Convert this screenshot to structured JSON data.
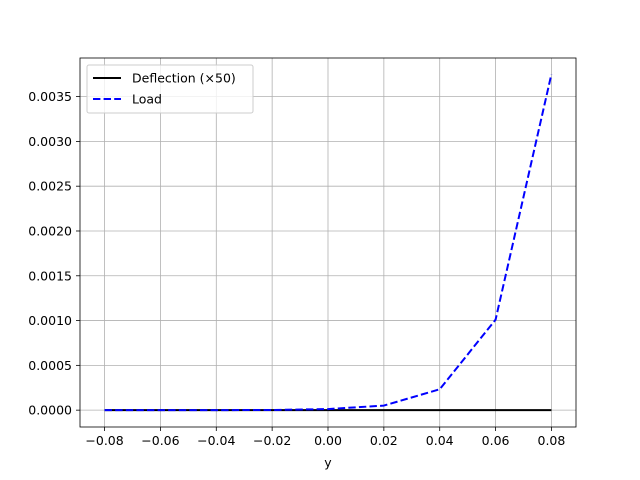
{
  "chart_data": {
    "type": "line",
    "title": "",
    "xlabel": "y",
    "ylabel": "",
    "xlim": [
      -0.0888,
      0.0888
    ],
    "ylim": [
      -0.000188,
      0.003931
    ],
    "xticks": [
      -0.08,
      -0.06,
      -0.04,
      -0.02,
      0.0,
      0.02,
      0.04,
      0.06,
      0.08
    ],
    "xtick_labels": [
      "−0.08",
      "−0.06",
      "−0.04",
      "−0.02",
      "0.00",
      "0.02",
      "0.04",
      "0.06",
      "0.08"
    ],
    "yticks": [
      0.0,
      0.0005,
      0.001,
      0.0015,
      0.002,
      0.0025,
      0.003,
      0.0035
    ],
    "ytick_labels": [
      "0.0000",
      "0.0005",
      "0.0010",
      "0.0015",
      "0.0020",
      "0.0025",
      "0.0030",
      "0.0035"
    ],
    "grid": true,
    "legend_position": "top-left",
    "series": [
      {
        "name": "Deflection (×50)",
        "color": "#000000",
        "style": "solid",
        "x": [
          -0.08,
          -0.06,
          -0.04,
          -0.02,
          0.0,
          0.02,
          0.04,
          0.06,
          0.08
        ],
        "values": [
          0,
          0,
          0,
          0,
          0,
          0,
          0,
          0,
          0
        ]
      },
      {
        "name": "Load",
        "color": "#0000ff",
        "style": "dashed",
        "x": [
          -0.08,
          -0.06,
          -0.04,
          -0.02,
          0.0,
          0.02,
          0.04,
          0.06,
          0.08
        ],
        "values": [
          1e-07,
          3e-07,
          7e-07,
          2e-06,
          1.2e-05,
          5.1e-05,
          0.000233,
          0.00101,
          0.00375
        ]
      }
    ]
  }
}
